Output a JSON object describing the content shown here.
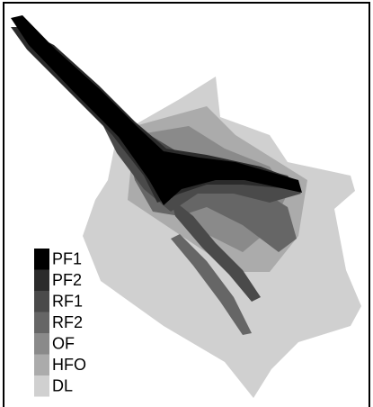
{
  "legend": {
    "items": [
      {
        "label": "PF1",
        "color": "#000000"
      },
      {
        "label": "PF2",
        "color": "#2b2b2b"
      },
      {
        "label": "RF1",
        "color": "#4a4a4a"
      },
      {
        "label": "RF2",
        "color": "#666666"
      },
      {
        "label": "OF",
        "color": "#8a8a8a"
      },
      {
        "label": "HFO",
        "color": "#ababab"
      },
      {
        "label": "DL",
        "color": "#d0d0d0"
      }
    ]
  }
}
